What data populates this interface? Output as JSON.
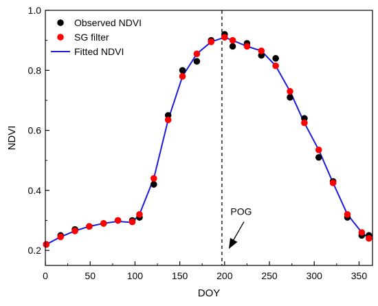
{
  "chart_data": {
    "type": "scatter",
    "xlabel": "DOY",
    "ylabel": "NDVI",
    "xlim": [
      0,
      365
    ],
    "ylim": [
      0.15,
      1.0
    ],
    "x_ticks": [
      0,
      50,
      100,
      150,
      200,
      250,
      300,
      350
    ],
    "y_ticks": [
      0.2,
      0.4,
      0.6,
      0.8,
      1.0
    ],
    "x_tick_labels": [
      "0",
      "50",
      "100",
      "150",
      "200",
      "250",
      "300",
      "350"
    ],
    "y_tick_labels": [
      "0.2",
      "0.4",
      "0.6",
      "0.8",
      "1.0"
    ],
    "grid": false,
    "legend_position": "top-left",
    "series": [
      {
        "name": "Observed NDVI",
        "type": "scatter",
        "color": "#000000",
        "x": [
          1,
          17,
          33,
          49,
          65,
          81,
          97,
          105,
          121,
          137,
          153,
          169,
          185,
          200,
          209,
          225,
          241,
          257,
          273,
          289,
          305,
          321,
          337,
          353,
          361
        ],
        "y": [
          0.22,
          0.25,
          0.27,
          0.28,
          0.29,
          0.3,
          0.3,
          0.31,
          0.42,
          0.65,
          0.8,
          0.83,
          0.9,
          0.92,
          0.88,
          0.89,
          0.85,
          0.84,
          0.71,
          0.64,
          0.51,
          0.43,
          0.31,
          0.25,
          0.25
        ]
      },
      {
        "name": "SG filter",
        "type": "scatter",
        "color": "#ff0000",
        "x": [
          1,
          17,
          33,
          49,
          65,
          81,
          97,
          105,
          121,
          137,
          153,
          169,
          185,
          200,
          209,
          225,
          241,
          257,
          273,
          289,
          305,
          321,
          337,
          353,
          361
        ],
        "y": [
          0.22,
          0.245,
          0.265,
          0.28,
          0.29,
          0.3,
          0.295,
          0.32,
          0.44,
          0.635,
          0.78,
          0.855,
          0.895,
          0.91,
          0.9,
          0.88,
          0.865,
          0.815,
          0.73,
          0.625,
          0.535,
          0.425,
          0.32,
          0.26,
          0.24
        ]
      },
      {
        "name": "Fitted NDVI",
        "type": "line",
        "color": "#1a1adc",
        "x": [
          1,
          17,
          33,
          49,
          65,
          81,
          97,
          105,
          121,
          137,
          153,
          169,
          185,
          200,
          209,
          225,
          241,
          257,
          273,
          289,
          305,
          321,
          337,
          353,
          361
        ],
        "y": [
          0.22,
          0.245,
          0.265,
          0.28,
          0.29,
          0.297,
          0.293,
          0.32,
          0.44,
          0.635,
          0.78,
          0.855,
          0.895,
          0.91,
          0.9,
          0.88,
          0.865,
          0.815,
          0.73,
          0.625,
          0.535,
          0.425,
          0.32,
          0.26,
          0.24
        ]
      }
    ],
    "annotations": [
      {
        "label": "POG",
        "x": 197,
        "arrow_tip_y": 0.205,
        "arrow_tail": [
          217,
          0.33
        ]
      }
    ],
    "vertical_line": {
      "x": 197,
      "style": "dashed"
    }
  }
}
